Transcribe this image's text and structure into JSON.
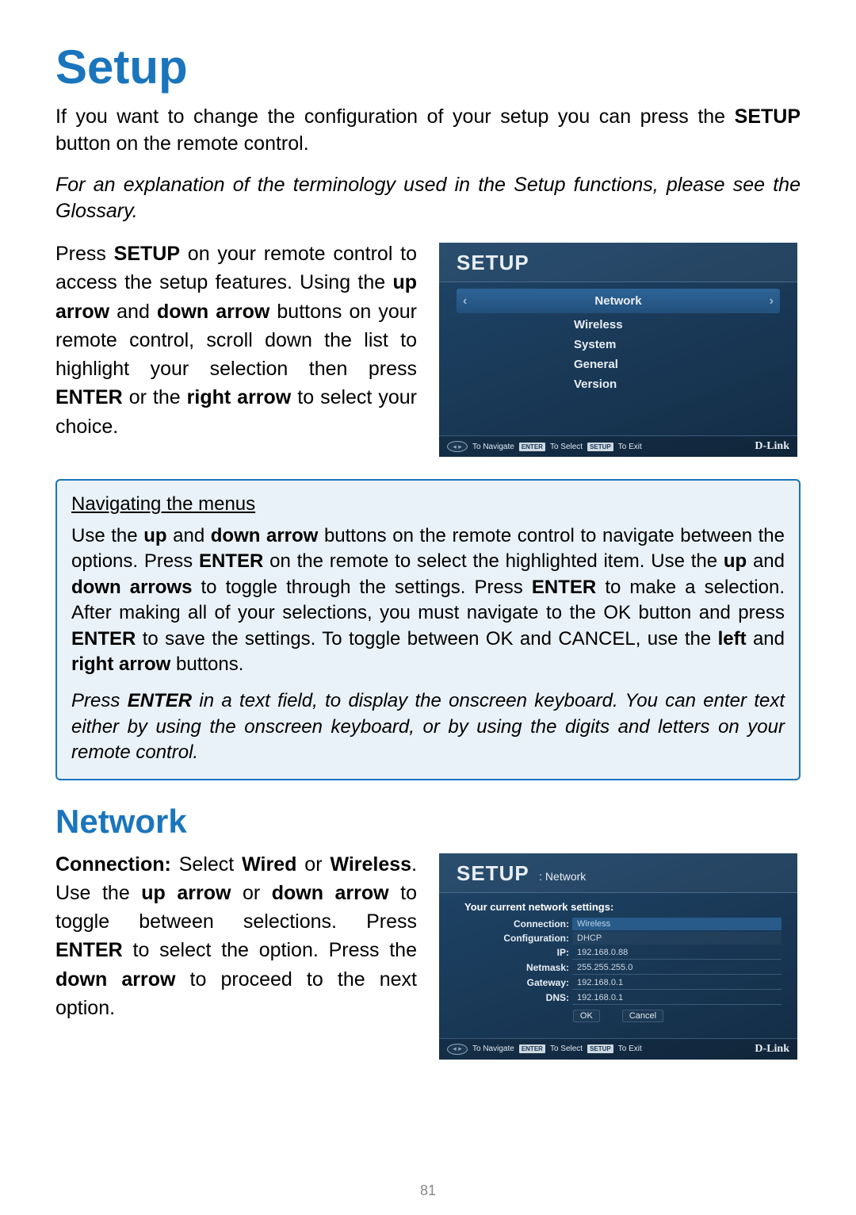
{
  "page": {
    "title": "Setup",
    "intro_html": "If you want to change the configuration of your setup you can press the <b>SETUP</b> button on the remote control.",
    "glossary_note": "For an explanation of the terminology used in the Setup functions, please see the Glossary.",
    "para1_html": "Press <b>SETUP</b> on your remote control to access the setup features. Using the <b>up arrow</b> and <b>down arrow</b> buttons on your remote control, scroll down the list to highlight your selection then press <b>ENTER</b> or the <b>right arrow</b> to select your choice.",
    "section2_title": "Network",
    "para2_html": "<b>Connection:</b> Select <b>Wired</b> or <b>Wireless</b>. Use the <b>up arrow</b> or <b>down arrow</b> to toggle between selections. Press <b>ENTER</b> to select the option. Press the <b>down arrow</b> to proceed to the next option.",
    "page_number": "81"
  },
  "infobox": {
    "title": "Navigating the menus",
    "body_html": "Use the <b>up</b> and <b>down arrow</b> buttons on the remote control to navigate between the options. Press <b>ENTER</b> on the remote to select the highlighted item. Use the <b>up</b> and <b>down arrows</b> to toggle through the settings. Press <b>ENTER</b> to make a selection. After making all of your selections, you must navigate to the OK button and press <b>ENTER</b> to save the settings. To toggle between OK and CANCEL, use the <b>left</b> and <b>right arrow</b> buttons.",
    "note_html": "Press <b>ENTER</b> in a text field, to display the onscreen keyboard. You can enter text either by using the onscreen keyboard, or by using the digits and letters on your remote control."
  },
  "screen1": {
    "title": "SETUP",
    "items": [
      "Network",
      "Wireless",
      "System",
      "General",
      "Version"
    ],
    "selected_index": 0,
    "footer": {
      "navigate": "To Navigate",
      "enter_btn": "ENTER",
      "select": "To Select",
      "setup_btn": "SETUP",
      "exit": "To Exit",
      "brand": "D-Link"
    },
    "colors": {
      "bg": "#1a3a5c",
      "highlight": "#285a8a",
      "text": "#e8eef4"
    }
  },
  "screen2": {
    "title": "SETUP",
    "subtitle": ": Network",
    "heading": "Your current network settings:",
    "rows": [
      {
        "label": "Connection:",
        "value": "Wireless",
        "highlight": true
      },
      {
        "label": "Configuration:",
        "value": "DHCP",
        "highlight": false
      },
      {
        "label": "IP:",
        "value": "192.168.0.88",
        "highlight": false
      },
      {
        "label": "Netmask:",
        "value": "255.255.255.0",
        "highlight": false
      },
      {
        "label": "Gateway:",
        "value": "192.168.0.1",
        "highlight": false
      },
      {
        "label": "DNS:",
        "value": "192.168.0.1",
        "highlight": false
      }
    ],
    "ok": "OK",
    "cancel": "Cancel",
    "footer": {
      "navigate": "To Navigate",
      "enter_btn": "ENTER",
      "select": "To Select",
      "setup_btn": "SETUP",
      "exit": "To Exit",
      "brand": "D-Link"
    }
  }
}
